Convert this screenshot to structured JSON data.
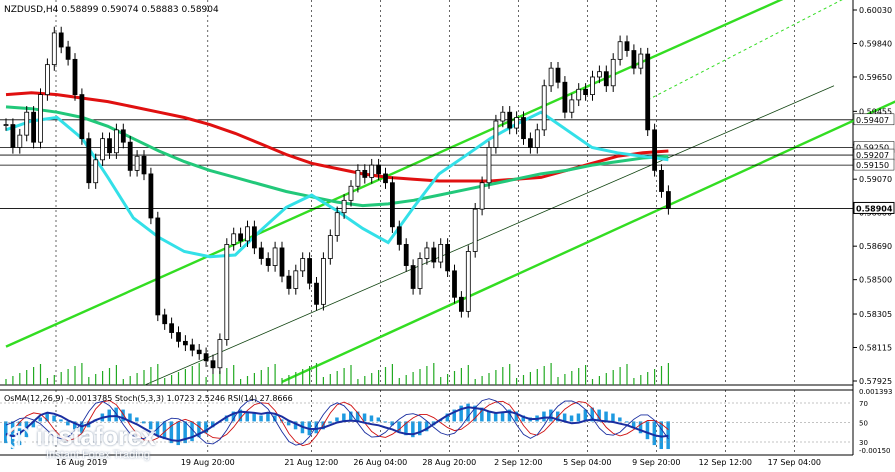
{
  "colors": {
    "candle": "#000000",
    "ma200_red": "#e01010",
    "ma_green": "#22c87a",
    "ma_cyan": "#33e0e8",
    "channel": "#33dd22",
    "midline": "#114411",
    "hline": "#000000",
    "osma": "#1e9ae0",
    "stoch_main": "#1a2ea0",
    "stoch_signal": "#d01010",
    "rsi": "#0a6a2a",
    "volume": "#22aa22"
  },
  "header": {
    "title": "NZDUSD,H4  0.58899  0.59074  0.58883  0.58904"
  },
  "indicator_header": {
    "text": "OsMA(12,26,9) -0.0013785  Stoch(5,3,3) 1.0723  2.5246  RSI(14) 27.8666"
  },
  "watermark": {
    "logo_text": "instaforex",
    "subtitle": "Instant Forex Trading"
  },
  "chart_data": {
    "type": "candlestick",
    "symbol": "NZDUSD",
    "timeframe": "H4",
    "ohlc_last": {
      "open": 0.58899,
      "high": 0.59074,
      "low": 0.58883,
      "close": 0.58904
    },
    "ylim": [
      0.57925,
      0.6003
    ],
    "price_ticks": [
      "0.60030",
      "0.59840",
      "0.59650",
      "0.59455",
      "0.59265",
      "0.59070",
      "0.58880",
      "0.58690",
      "0.58500",
      "0.58305",
      "0.58115",
      "0.57925"
    ],
    "price_tick_values": [
      0.6003,
      0.5984,
      0.5965,
      0.59455,
      0.59265,
      0.5907,
      0.5888,
      0.5869,
      0.585,
      0.58305,
      0.58115,
      0.57925
    ],
    "time_labels": [
      "16 Aug 2019",
      "19 Aug 20:00",
      "21 Aug 12:00",
      "26 Aug 04:00",
      "28 Aug 20:00",
      "2 Sep 12:00",
      "5 Sep 04:00",
      "9 Sep 20:00",
      "12 Sep 12:00",
      "17 Sep 04:00"
    ],
    "time_label_bar_index": [
      0,
      22,
      37,
      47,
      57,
      67,
      77,
      87,
      97,
      107
    ],
    "horizontal_levels": [
      {
        "label": "0.59407",
        "value": 0.59407
      },
      {
        "label": "0.59250",
        "value": 0.5925
      },
      {
        "label": "0.59207",
        "value": 0.59207
      },
      {
        "label": "0.59150",
        "value": 0.5915
      },
      {
        "label": "0.58904",
        "value": 0.58904,
        "current": true
      }
    ],
    "closes": [
      0.5938,
      0.5925,
      0.5932,
      0.5945,
      0.5928,
      0.5955,
      0.5972,
      0.599,
      0.5982,
      0.5975,
      0.5955,
      0.593,
      0.5905,
      0.5918,
      0.593,
      0.5922,
      0.5935,
      0.5928,
      0.5912,
      0.592,
      0.591,
      0.5885,
      0.583,
      0.5825,
      0.582,
      0.5815,
      0.5813,
      0.581,
      0.5808,
      0.5804,
      0.58,
      0.5816,
      0.587,
      0.5876,
      0.5872,
      0.588,
      0.5868,
      0.5862,
      0.5858,
      0.5868,
      0.5852,
      0.5845,
      0.5855,
      0.5862,
      0.5848,
      0.5836,
      0.5862,
      0.5875,
      0.5888,
      0.5895,
      0.5903,
      0.5912,
      0.5908,
      0.5915,
      0.591,
      0.5905,
      0.588,
      0.587,
      0.5858,
      0.5845,
      0.5862,
      0.5868,
      0.586,
      0.587,
      0.5855,
      0.584,
      0.5832,
      0.5866,
      0.589,
      0.5905,
      0.5925,
      0.594,
      0.5945,
      0.5936,
      0.5942,
      0.593,
      0.5925,
      0.5935,
      0.596,
      0.597,
      0.5962,
      0.5945,
      0.5952,
      0.5958,
      0.5955,
      0.5965,
      0.5968,
      0.596,
      0.5975,
      0.5985,
      0.598,
      0.597,
      0.5978,
      0.5935,
      0.5912,
      0.59,
      0.58904
    ],
    "series": [
      {
        "name": "MA200",
        "color_key": "ma200_red",
        "values": [
          0.5955,
          0.5956,
          0.5955,
          0.5953,
          0.5951,
          0.5948,
          0.5945,
          0.5942,
          0.5938,
          0.5933,
          0.5927,
          0.5921,
          0.5916,
          0.5913,
          0.591,
          0.5908,
          0.5907,
          0.5906,
          0.5906,
          0.5906,
          0.5907,
          0.5908,
          0.5912,
          0.5916,
          0.592,
          0.5922,
          0.5923
        ]
      },
      {
        "name": "MA_green",
        "color_key": "ma_green",
        "values": [
          0.5948,
          0.5947,
          0.5945,
          0.5942,
          0.5937,
          0.593,
          0.5923,
          0.5917,
          0.5912,
          0.5908,
          0.5904,
          0.59,
          0.5897,
          0.5894,
          0.5892,
          0.5893,
          0.5895,
          0.5898,
          0.5901,
          0.5904,
          0.5907,
          0.591,
          0.5912,
          0.5915,
          0.5917,
          0.5919,
          0.592
        ]
      },
      {
        "name": "MA_cyan",
        "color_key": "ma_cyan",
        "values": [
          0.5935,
          0.594,
          0.5942,
          0.593,
          0.5908,
          0.5885,
          0.5874,
          0.5866,
          0.5863,
          0.5864,
          0.5878,
          0.5891,
          0.5898,
          0.5889,
          0.5879,
          0.5871,
          0.5891,
          0.591,
          0.592,
          0.593,
          0.5938,
          0.5945,
          0.5935,
          0.5925,
          0.5922,
          0.592,
          0.5918
        ]
      }
    ],
    "channel_lines": [
      {
        "name": "upper",
        "from": [
          0,
          0.5812
        ],
        "to": [
          113,
          0.601
        ]
      },
      {
        "name": "lower",
        "from": [
          40,
          0.5792
        ],
        "to": [
          135,
          0.5962
        ]
      },
      {
        "name": "mid",
        "from": [
          20,
          0.579
        ],
        "to": [
          120,
          0.596
        ]
      }
    ],
    "indicator_panel": {
      "ylim": [
        -0.0015,
        0.00139
      ],
      "tick_labels": [
        "0.001393",
        "70",
        "50",
        "30",
        "-0.00150"
      ],
      "osma_values": [
        -0.0011,
        -0.0014,
        -0.0012,
        -0.0008,
        -0.0003,
        0.0002,
        0.0004,
        0.0003,
        0.0001,
        -0.0002,
        -0.0004,
        -0.0006,
        -0.0003,
        0.0001,
        0.0004,
        0.0006,
        0.0007,
        0.0006,
        0.0004,
        0.0002,
        -0.0001,
        -0.0004,
        -0.0007,
        -0.0009,
        -0.0011,
        -0.0012,
        -0.0011,
        -0.001,
        -0.0008,
        -0.0006,
        -0.0003,
        0.0,
        0.0003,
        0.0005,
        0.0006,
        0.0005,
        0.0004,
        0.0003,
        0.0004,
        0.0003,
        0.0001,
        -0.0002,
        -0.0004,
        -0.0006,
        -0.0007,
        -0.0006,
        -0.0004,
        -0.0001,
        0.0002,
        0.0004,
        0.0005,
        0.0005,
        0.0004,
        0.0003,
        0.0002,
        0.0,
        -0.0002,
        -0.0005,
        -0.0007,
        -0.0008,
        -0.0007,
        -0.0005,
        -0.0002,
        0.0001,
        0.0004,
        0.0006,
        0.0008,
        0.0009,
        0.0008,
        0.0007,
        0.0005,
        0.0004,
        0.0005,
        0.0006,
        0.0005,
        0.0003,
        0.0002,
        0.0003,
        0.0005,
        0.0006,
        0.0005,
        0.0004,
        0.0003,
        0.0004,
        0.0006,
        0.0007,
        0.0006,
        0.0005,
        0.0004,
        0.0002,
        0.0,
        -0.0003,
        -0.0006,
        -0.0009,
        -0.0012,
        -0.0014,
        -0.0014
      ]
    }
  }
}
